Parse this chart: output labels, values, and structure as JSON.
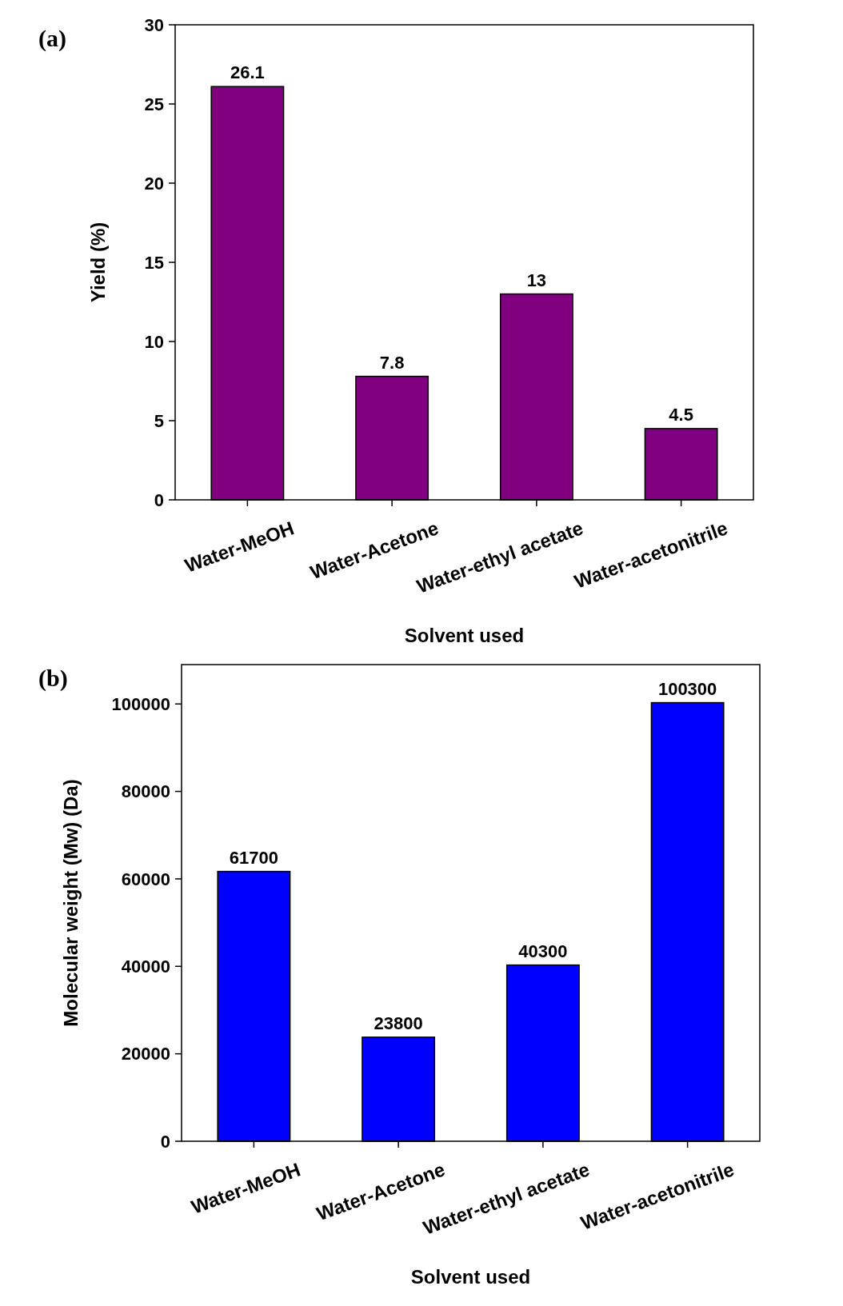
{
  "chart_data": [
    {
      "type": "bar",
      "title": "(a)",
      "xlabel": "Solvent used",
      "ylabel": "Yield (%)",
      "categories": [
        "Water-MeOH",
        "Water-Acetone",
        "Water-ethyl acetate",
        "Water-acetonitrile"
      ],
      "values": [
        26.1,
        7.8,
        13,
        4.5
      ],
      "color": "#800080",
      "ylim": [
        0,
        30
      ],
      "yticks": [
        0,
        5,
        10,
        15,
        20,
        25,
        30
      ],
      "data_labels": true,
      "grid": false
    },
    {
      "type": "bar",
      "title": "(b)",
      "xlabel": "Solvent used",
      "ylabel": "Molecular weight (Mw) (Da)",
      "categories": [
        "Water-MeOH",
        "Water-Acetone",
        "Water-ethyl acetate",
        "Water-acetonitrile"
      ],
      "values": [
        61700,
        23800,
        40300,
        100300
      ],
      "color": "#0000ff",
      "ylim": [
        0,
        109000
      ],
      "yticks": [
        0,
        20000,
        40000,
        60000,
        80000,
        100000
      ],
      "data_labels": true,
      "grid": false
    }
  ]
}
